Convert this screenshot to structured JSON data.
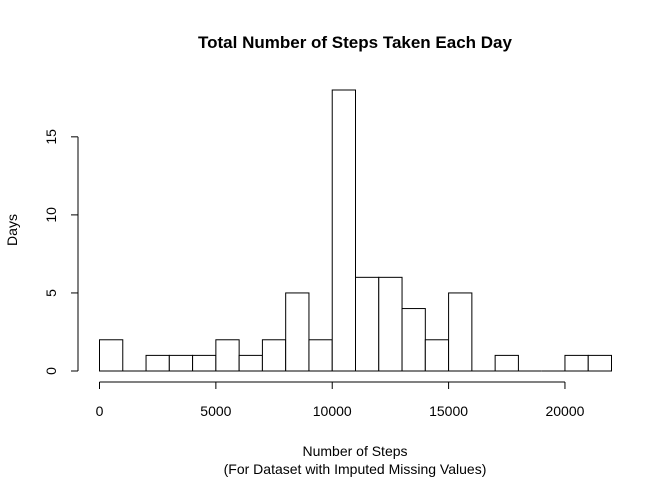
{
  "chart_data": {
    "type": "bar",
    "title": "Total Number of Steps Taken Each Day",
    "xlabel": "Number of Steps",
    "xlabel_sub": "(For Dataset with Imputed Missing Values)",
    "ylabel": "Days",
    "bin_width": 1000,
    "bins_start": [
      0,
      1000,
      2000,
      3000,
      4000,
      5000,
      6000,
      7000,
      8000,
      9000,
      10000,
      11000,
      12000,
      13000,
      14000,
      15000,
      16000,
      17000,
      18000,
      19000,
      20000,
      21000
    ],
    "values": [
      2,
      0,
      1,
      1,
      1,
      2,
      1,
      2,
      5,
      2,
      18,
      6,
      6,
      4,
      2,
      5,
      0,
      1,
      0,
      0,
      1,
      1
    ],
    "xlim": [
      0,
      22000
    ],
    "ylim": [
      0,
      18
    ],
    "x_ticks": [
      0,
      5000,
      10000,
      15000,
      20000
    ],
    "y_ticks": [
      0,
      5,
      10,
      15
    ],
    "grid": false,
    "bar_fill": "#ffffff",
    "bar_stroke": "#000000"
  }
}
